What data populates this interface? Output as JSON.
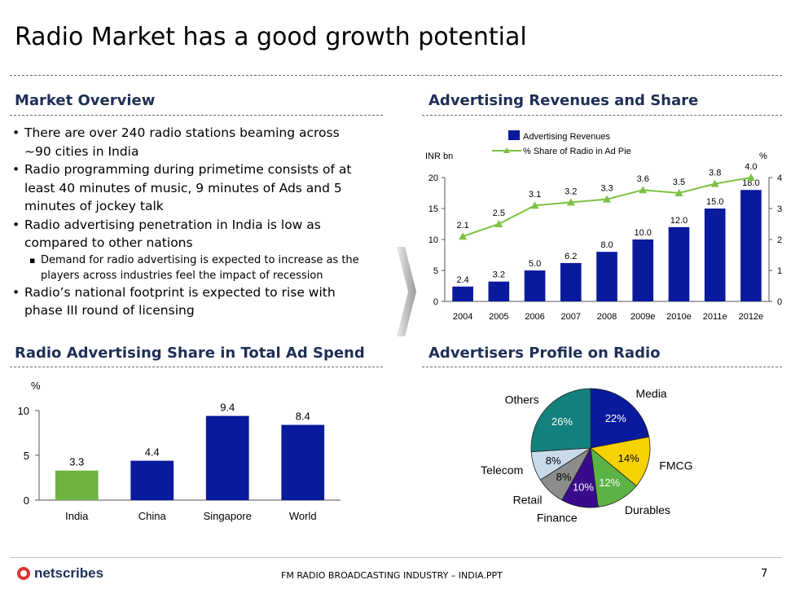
{
  "page": {
    "title": "Radio Market has a good growth potential",
    "footer": "FM RADIO BROADCASTING INDUSTRY – INDIA.PPT",
    "page_number": "7",
    "logo_text": "netscribes"
  },
  "market_overview": {
    "heading": "Market Overview",
    "bullets": [
      "There are over 240 radio stations beaming across ~90 cities in India",
      "Radio programming during primetime consists of at least 40 minutes of music, 9 minutes of Ads and 5 minutes of jockey talk",
      "Radio advertising penetration in India is low as compared to other nations"
    ],
    "sub_bullet": "Demand for radio advertising is expected to increase as the players across industries feel the impact of recession",
    "last_bullet": "Radio’s national footprint is expected to rise with phase III round of licensing"
  },
  "headings": {
    "ad_revenue": "Advertising Revenues and Share",
    "share_spend": "Radio Advertising Share in Total Ad Spend",
    "profile": "Advertisers Profile on Radio"
  },
  "chart_data": [
    {
      "type": "bar",
      "title": "",
      "ylabel": "INR bn",
      "y2label": "%",
      "categories": [
        "2004",
        "2005",
        "2006",
        "2007",
        "2008",
        "2009e",
        "2010e",
        "2011e",
        "2012e"
      ],
      "ylim": [
        0,
        20
      ],
      "y2lim": [
        0,
        4
      ],
      "yticks": [
        0,
        5,
        10,
        15,
        20
      ],
      "y2ticks": [
        0,
        1,
        2,
        3,
        4
      ],
      "legend_position": "top-center",
      "series": [
        {
          "name": "Advertising Revenues",
          "kind": "bar",
          "color": "#0a1a9c",
          "values": [
            2.4,
            3.2,
            5.0,
            6.2,
            8.0,
            10.0,
            12.0,
            15.0,
            18.0
          ],
          "labels": [
            "2.4",
            "3.2",
            "5.0",
            "6.2",
            "8.0",
            "10.0",
            "12.0",
            "15.0",
            "18.0"
          ]
        },
        {
          "name": "% Share of Radio in Ad Pie",
          "kind": "line",
          "axis": "right",
          "color": "#7dc143",
          "values": [
            2.1,
            2.5,
            3.1,
            3.2,
            3.3,
            3.6,
            3.5,
            3.8,
            4.0
          ],
          "labels": [
            "2.1",
            "2.5",
            "3.1",
            "3.2",
            "3.3",
            "3.6",
            "3.5",
            "3.8",
            "4.0"
          ]
        }
      ],
      "grid": false
    },
    {
      "type": "bar",
      "title": "",
      "ylabel": "%",
      "categories": [
        "India",
        "China",
        "Singapore",
        "World"
      ],
      "values": [
        3.3,
        4.4,
        9.4,
        8.4
      ],
      "labels": [
        "3.3",
        "4.4",
        "9.4",
        "8.4"
      ],
      "colors": [
        "#6db33f",
        "#0a1a9c",
        "#0a1a9c",
        "#0a1a9c"
      ],
      "ylim": [
        0,
        10
      ],
      "yticks": [
        0,
        5,
        10
      ],
      "grid": false
    },
    {
      "type": "pie",
      "title": "",
      "slices": [
        {
          "name": "Media",
          "value": 22,
          "label": "22%",
          "color": "#0a1a9c"
        },
        {
          "name": "FMCG",
          "value": 14,
          "label": "14%",
          "color": "#f5d200"
        },
        {
          "name": "Durables",
          "value": 12,
          "label": "12%",
          "color": "#5cb345"
        },
        {
          "name": "Finance",
          "value": 10,
          "label": "10%",
          "color": "#3a0a8c"
        },
        {
          "name": "Retail",
          "value": 8,
          "label": "8%",
          "color": "#8c8c8c"
        },
        {
          "name": "Telecom",
          "value": 8,
          "label": "8%",
          "color": "#c9dbea"
        },
        {
          "name": "Others",
          "value": 26,
          "label": "26%",
          "color": "#12807c"
        }
      ]
    }
  ]
}
